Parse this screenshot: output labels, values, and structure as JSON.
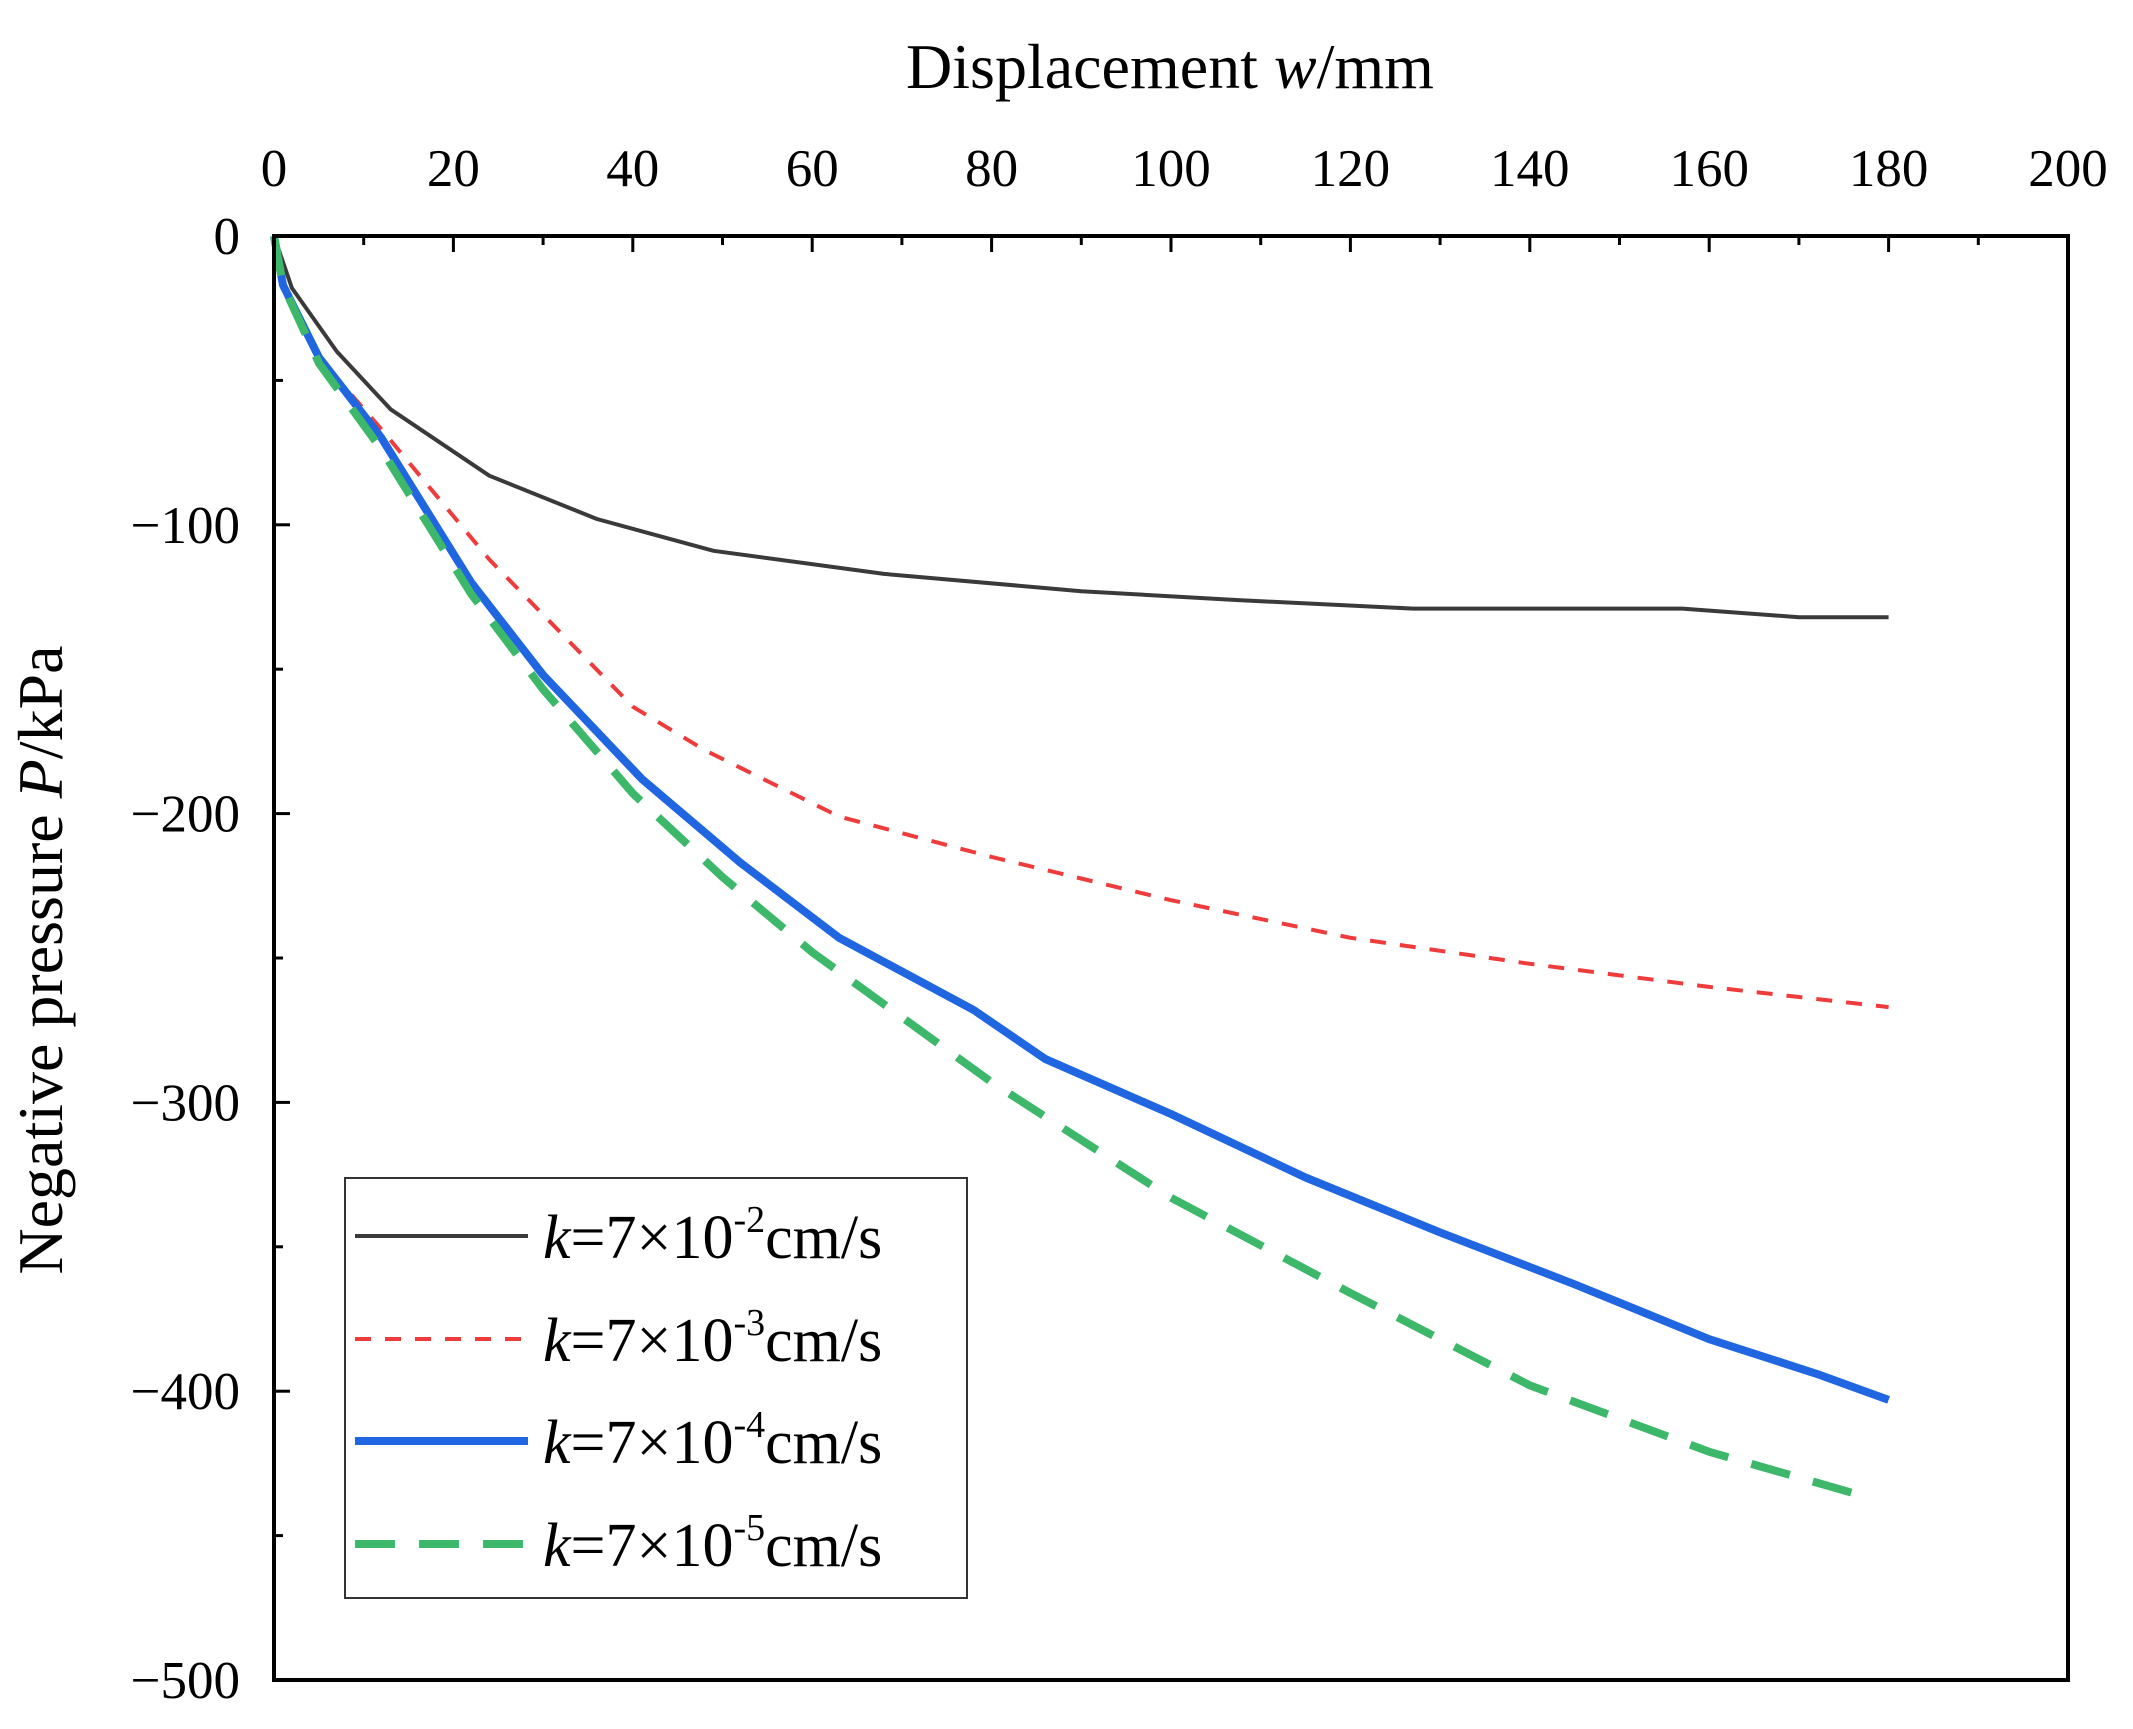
{
  "chart_data": {
    "type": "line",
    "title": "",
    "xlabel": {
      "prefix": "Displacement ",
      "var": "w",
      "suffix": "/mm"
    },
    "ylabel": {
      "prefix": "Negative pressure ",
      "var": "P",
      "suffix": "/kPa"
    },
    "xlim": [
      0,
      200
    ],
    "ylim": [
      -500,
      0
    ],
    "x_axis_position": "top",
    "xticks": [
      0,
      20,
      40,
      60,
      80,
      100,
      120,
      140,
      160,
      180,
      200
    ],
    "yticks": [
      0,
      -100,
      -200,
      -300,
      -400,
      -500
    ],
    "ytick_labels": [
      "0",
      "−100",
      "−200",
      "−300",
      "−400",
      "−500"
    ],
    "grid": false,
    "legend": {
      "position": "bottom-left"
    },
    "series": [
      {
        "name": "k=7×10-2cm/s",
        "label_var": "k",
        "label_mid": "=7×10",
        "label_exp": "-2",
        "label_unit": "cm/s",
        "color": "#3a3a3a",
        "line_style": "solid",
        "line_weight": "thin",
        "x": [
          0,
          2,
          7,
          13,
          24,
          36,
          49,
          68,
          90,
          107,
          127,
          157,
          170,
          180
        ],
        "y": [
          0,
          -18,
          -40,
          -60,
          -83,
          -98,
          -109,
          -117,
          -123,
          -126,
          -129,
          -129,
          -132,
          -132
        ]
      },
      {
        "name": "k=7×10-3cm/s",
        "label_var": "k",
        "label_mid": "=7×10",
        "label_exp": "-3",
        "label_unit": "cm/s",
        "color": "#ee3b3b",
        "line_style": "short-dash",
        "line_weight": "thin",
        "x": [
          0,
          1,
          5,
          12,
          24,
          40,
          48,
          63,
          80,
          100,
          120,
          140,
          160,
          180
        ],
        "y": [
          0,
          -17,
          -42,
          -67,
          -112,
          -163,
          -178,
          -201,
          -215,
          -230,
          -243,
          -252,
          -260,
          -267
        ]
      },
      {
        "name": "k=7×10-4cm/s",
        "label_var": "k",
        "label_mid": "=7×10",
        "label_exp": "-4",
        "label_unit": "cm/s",
        "color": "#1f66e0",
        "line_style": "solid",
        "line_weight": "thick",
        "x": [
          0,
          1,
          5,
          12,
          22,
          30,
          41,
          52,
          63,
          78,
          86,
          100,
          115,
          130,
          145,
          160,
          172,
          180
        ],
        "y": [
          0,
          -17,
          -42,
          -70,
          -120,
          -152,
          -188,
          -217,
          -243,
          -268,
          -285,
          -304,
          -326,
          -345,
          -363,
          -382,
          -394,
          -403
        ]
      },
      {
        "name": "k=7×10-5cm/s",
        "label_var": "k",
        "label_mid": "=7×10",
        "label_exp": "-5",
        "label_unit": "cm/s",
        "color": "#3db86a",
        "line_style": "long-dash",
        "line_weight": "thick",
        "x": [
          0,
          1,
          5,
          12,
          22,
          30,
          40,
          50,
          60,
          80,
          100,
          120,
          140,
          160,
          178
        ],
        "y": [
          0,
          -17,
          -44,
          -74,
          -124,
          -157,
          -193,
          -222,
          -248,
          -293,
          -333,
          -366,
          -398,
          -421,
          -437
        ]
      }
    ]
  }
}
